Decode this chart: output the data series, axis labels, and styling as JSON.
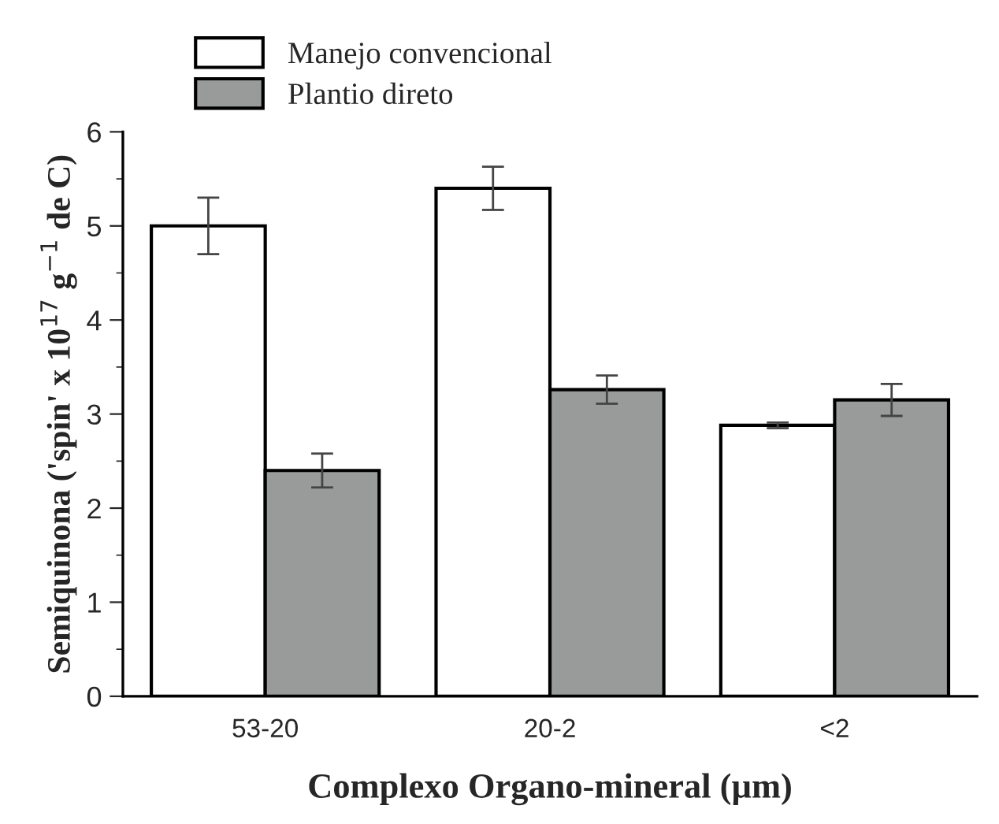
{
  "chart_data": {
    "type": "bar",
    "xlabel": "Complexo Organo-mineral (µm)",
    "ylabel": "Semiquinona ('spin' x 10$^{17}$ g$^{−1}$ de C)",
    "categories": [
      "53-20",
      "20-2",
      "<2"
    ],
    "series": [
      {
        "name": "Manejo convencional",
        "color": "#ffffff",
        "values": [
          5.0,
          5.4,
          2.88
        ],
        "errors": [
          0.3,
          0.23,
          0.03
        ]
      },
      {
        "name": "Plantio direto",
        "color": "#999b9b",
        "values": [
          2.4,
          3.26,
          3.15
        ],
        "errors": [
          0.18,
          0.15,
          0.17
        ]
      }
    ],
    "ylim": [
      0,
      6
    ],
    "yticks": [
      0,
      {
        "value": 0.5,
        "label": null
      },
      1,
      {
        "value": 1.5,
        "label": null
      },
      2,
      {
        "value": 2.5,
        "label": null
      },
      3,
      {
        "value": 3.5,
        "label": null
      },
      4,
      {
        "value": 4.5,
        "label": null
      },
      5,
      {
        "value": 5.5,
        "label": null
      },
      6
    ],
    "grid": false,
    "legend": "top left"
  }
}
